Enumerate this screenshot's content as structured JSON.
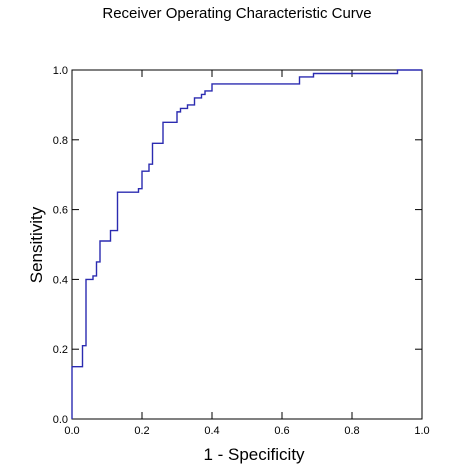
{
  "chart_data": {
    "type": "line",
    "title": "Receiver Operating Characteristic Curve",
    "xlabel": "1 - Specificity",
    "ylabel": "Sensitivity",
    "xlim": [
      0.0,
      1.0
    ],
    "ylim": [
      0.0,
      1.0
    ],
    "x_ticks": [
      "0.0",
      "0.2",
      "0.4",
      "0.6",
      "0.8",
      "1.0"
    ],
    "y_ticks": [
      "0.0",
      "0.2",
      "0.4",
      "0.6",
      "0.8",
      "1.0"
    ],
    "grid": false,
    "legend": "none",
    "colors": {
      "line": "#2b2bb0",
      "axes": "#000000"
    },
    "series": [
      {
        "x": [
          0.0,
          0.0,
          0.03,
          0.03,
          0.04,
          0.04,
          0.06,
          0.06,
          0.07,
          0.07,
          0.08,
          0.08,
          0.11,
          0.11,
          0.13,
          0.13,
          0.19,
          0.19,
          0.2,
          0.2,
          0.22,
          0.22,
          0.23,
          0.23,
          0.26,
          0.26,
          0.3,
          0.3,
          0.31,
          0.31,
          0.33,
          0.33,
          0.35,
          0.35,
          0.37,
          0.37,
          0.38,
          0.38,
          0.4,
          0.4,
          0.45,
          0.45,
          0.65,
          0.65,
          0.69,
          0.69,
          0.93,
          0.93,
          1.0
        ],
        "y": [
          0.0,
          0.15,
          0.15,
          0.21,
          0.21,
          0.4,
          0.4,
          0.41,
          0.41,
          0.45,
          0.45,
          0.51,
          0.51,
          0.54,
          0.54,
          0.65,
          0.65,
          0.66,
          0.66,
          0.71,
          0.71,
          0.73,
          0.73,
          0.79,
          0.79,
          0.85,
          0.85,
          0.88,
          0.88,
          0.89,
          0.89,
          0.9,
          0.9,
          0.92,
          0.92,
          0.93,
          0.93,
          0.94,
          0.94,
          0.96,
          0.96,
          0.96,
          0.96,
          0.98,
          0.98,
          0.99,
          0.99,
          1.0,
          1.0
        ]
      }
    ]
  }
}
